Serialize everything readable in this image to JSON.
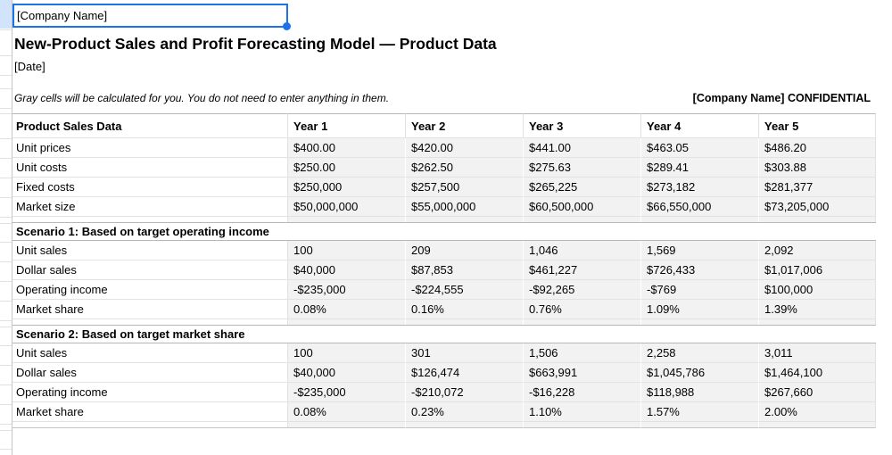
{
  "sheet": {
    "selected_cell_value": "[Company Name]",
    "title": "New-Product Sales and Profit Forecasting Model — Product Data",
    "date": "[Date]",
    "note": "Gray cells will be calculated for you. You do not need to enter anything in them.",
    "confidential": "[Company Name] CONFIDENTIAL"
  },
  "table": {
    "header": [
      "Product Sales Data",
      "Year 1",
      "Year 2",
      "Year 3",
      "Year 4",
      "Year 5"
    ],
    "sections": [
      {
        "title": "",
        "rows": [
          {
            "label": "Unit prices",
            "values": [
              "$400.00",
              "$420.00",
              "$441.00",
              "$463.05",
              "$486.20"
            ]
          },
          {
            "label": "Unit costs",
            "values": [
              "$250.00",
              "$262.50",
              "$275.63",
              "$289.41",
              "$303.88"
            ]
          },
          {
            "label": "Fixed costs",
            "values": [
              "$250,000",
              "$257,500",
              "$265,225",
              "$273,182",
              "$281,377"
            ]
          },
          {
            "label": "Market size",
            "values": [
              "$50,000,000",
              "$55,000,000",
              "$60,500,000",
              "$66,550,000",
              "$73,205,000"
            ]
          }
        ]
      },
      {
        "title": "Scenario 1: Based on target operating income",
        "rows": [
          {
            "label": "Unit sales",
            "values": [
              "100",
              "209",
              "1,046",
              "1,569",
              "2,092"
            ]
          },
          {
            "label": "Dollar sales",
            "values": [
              "$40,000",
              "$87,853",
              "$461,227",
              "$726,433",
              "$1,017,006"
            ]
          },
          {
            "label": "Operating income",
            "values": [
              "-$235,000",
              "-$224,555",
              "-$92,265",
              "-$769",
              "$100,000"
            ]
          },
          {
            "label": "Market share",
            "values": [
              "0.08%",
              "0.16%",
              "0.76%",
              "1.09%",
              "1.39%"
            ]
          }
        ]
      },
      {
        "title": "Scenario 2: Based on target market share",
        "rows": [
          {
            "label": "Unit sales",
            "values": [
              "100",
              "301",
              "1,506",
              "2,258",
              "3,011"
            ]
          },
          {
            "label": "Dollar sales",
            "values": [
              "$40,000",
              "$126,474",
              "$663,991",
              "$1,045,786",
              "$1,464,100"
            ]
          },
          {
            "label": "Operating income",
            "values": [
              "-$235,000",
              "-$210,072",
              "-$16,228",
              "$118,988",
              "$267,660"
            ]
          },
          {
            "label": "Market share",
            "values": [
              "0.08%",
              "0.23%",
              "1.10%",
              "1.57%",
              "2.00%"
            ]
          }
        ]
      }
    ]
  },
  "colors": {
    "selection_blue": "#1a73e8",
    "selected_row_header": "#d2e3fc",
    "calculated_cell_gray": "#f2f2f2",
    "gridline": "#e2e2e2",
    "section_border": "#b7b7b7"
  }
}
